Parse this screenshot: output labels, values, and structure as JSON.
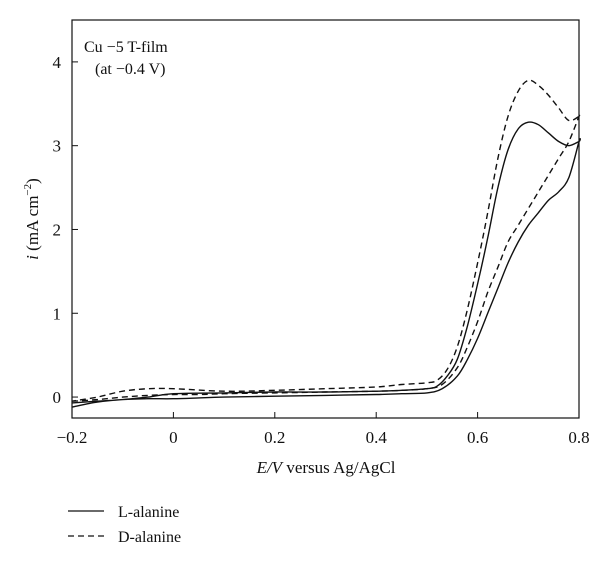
{
  "chart_data": {
    "type": "line",
    "annotation": [
      "Cu −5 T-film",
      "(at −0.4 V)"
    ],
    "xlabel": {
      "italic": "E/V",
      "rest": " versus Ag/AgCl"
    },
    "ylabel": {
      "italic": "i",
      "rest": " (mA cm",
      "sup": "−2",
      "close": ")"
    },
    "xlim": [
      -0.2,
      0.8
    ],
    "ylim": [
      -0.25,
      4.5
    ],
    "x_ticks": [
      -0.2,
      0,
      0.2,
      0.4,
      0.6,
      0.8
    ],
    "x_tick_labels": [
      "−0.2",
      "0",
      "0.2",
      "0.4",
      "0.6",
      "0.8"
    ],
    "y_ticks": [
      0,
      1,
      2,
      3,
      4
    ],
    "y_tick_labels": [
      "0",
      "1",
      "2",
      "3",
      "4"
    ],
    "grid": false,
    "legend_position": "below-left",
    "series": [
      {
        "name": "L-alanine",
        "style": "solid",
        "color": "#111111",
        "x": [
          -0.2,
          -0.15,
          -0.1,
          -0.05,
          0.0,
          0.05,
          0.1,
          0.2,
          0.3,
          0.4,
          0.45,
          0.5,
          0.53,
          0.56,
          0.58,
          0.6,
          0.62,
          0.64,
          0.66,
          0.68,
          0.7,
          0.72,
          0.74,
          0.76,
          0.78,
          0.8,
          0.8,
          0.78,
          0.76,
          0.74,
          0.72,
          0.7,
          0.68,
          0.66,
          0.64,
          0.62,
          0.6,
          0.58,
          0.56,
          0.54,
          0.52,
          0.5,
          0.45,
          0.4,
          0.3,
          0.2,
          0.1,
          0.0,
          -0.05,
          -0.1,
          -0.15,
          -0.2
        ],
        "y": [
          -0.12,
          -0.06,
          -0.03,
          -0.02,
          -0.02,
          -0.01,
          0.0,
          0.01,
          0.02,
          0.03,
          0.04,
          0.05,
          0.1,
          0.25,
          0.45,
          0.7,
          1.0,
          1.3,
          1.6,
          1.85,
          2.05,
          2.2,
          2.35,
          2.45,
          2.62,
          3.05,
          3.05,
          3.0,
          3.05,
          3.15,
          3.25,
          3.28,
          3.2,
          2.95,
          2.5,
          1.9,
          1.35,
          0.85,
          0.45,
          0.25,
          0.13,
          0.1,
          0.08,
          0.07,
          0.06,
          0.06,
          0.05,
          0.04,
          0.0,
          -0.03,
          -0.05,
          -0.07
        ]
      },
      {
        "name": "D-alanine",
        "style": "dashed",
        "color": "#111111",
        "x": [
          -0.2,
          -0.15,
          -0.1,
          -0.05,
          0.0,
          0.05,
          0.1,
          0.2,
          0.3,
          0.4,
          0.45,
          0.5,
          0.53,
          0.56,
          0.58,
          0.6,
          0.62,
          0.64,
          0.66,
          0.68,
          0.7,
          0.72,
          0.74,
          0.76,
          0.78,
          0.8,
          0.8,
          0.78,
          0.76,
          0.74,
          0.72,
          0.7,
          0.68,
          0.66,
          0.64,
          0.62,
          0.6,
          0.58,
          0.56,
          0.54,
          0.52,
          0.5,
          0.45,
          0.4,
          0.3,
          0.2,
          0.1,
          0.0,
          -0.05,
          -0.1,
          -0.15,
          -0.2
        ],
        "y": [
          -0.05,
          -0.03,
          0.0,
          0.02,
          0.03,
          0.03,
          0.04,
          0.05,
          0.06,
          0.07,
          0.08,
          0.1,
          0.15,
          0.35,
          0.6,
          0.9,
          1.25,
          1.55,
          1.85,
          2.05,
          2.25,
          2.45,
          2.65,
          2.85,
          3.05,
          3.35,
          3.35,
          3.3,
          3.45,
          3.6,
          3.72,
          3.78,
          3.65,
          3.35,
          2.85,
          2.2,
          1.6,
          1.05,
          0.6,
          0.33,
          0.2,
          0.17,
          0.15,
          0.12,
          0.1,
          0.08,
          0.07,
          0.1,
          0.1,
          0.07,
          0.0,
          -0.05
        ]
      }
    ]
  }
}
